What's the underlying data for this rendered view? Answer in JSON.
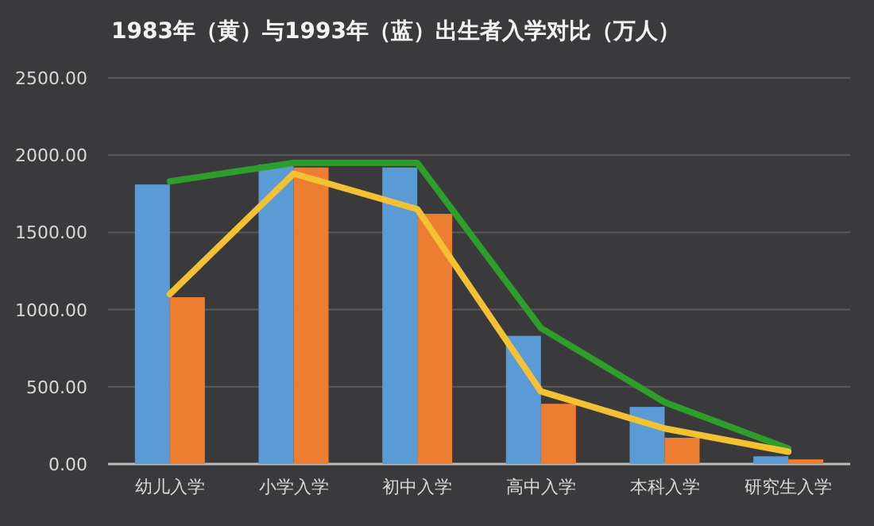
{
  "chart_data": {
    "type": "bar",
    "title": "1983年（黄）与1993年（蓝）出生者入学对比（万人）",
    "categories": [
      "幼儿入学",
      "小学入学",
      "初中入学",
      "高中入学",
      "本科入学",
      "研究生入学"
    ],
    "series": [
      {
        "color": "#5b9bd5",
        "values": [
          1810,
          1940,
          1920,
          830,
          370,
          50
        ]
      },
      {
        "color": "#ed7d31",
        "values": [
          1080,
          1920,
          1620,
          390,
          170,
          30
        ]
      },
      {
        "type": "line",
        "color": "#2e9e2a",
        "values": [
          1830,
          1950,
          1950,
          880,
          400,
          100
        ]
      },
      {
        "type": "line",
        "color": "#f2c232",
        "values": [
          1100,
          1880,
          1650,
          470,
          230,
          80
        ]
      }
    ],
    "ylim": [
      0,
      2500
    ],
    "yticks": [
      {
        "value": 0,
        "label": "0.00"
      },
      {
        "value": 500,
        "label": "500.00"
      },
      {
        "value": 1000,
        "label": "1000.00"
      },
      {
        "value": 1500,
        "label": "1500.00"
      },
      {
        "value": 2000,
        "label": "2000.00"
      },
      {
        "value": 2500,
        "label": "2500.00"
      }
    ],
    "grid": "y",
    "marker": "none",
    "line_style": "solid"
  }
}
